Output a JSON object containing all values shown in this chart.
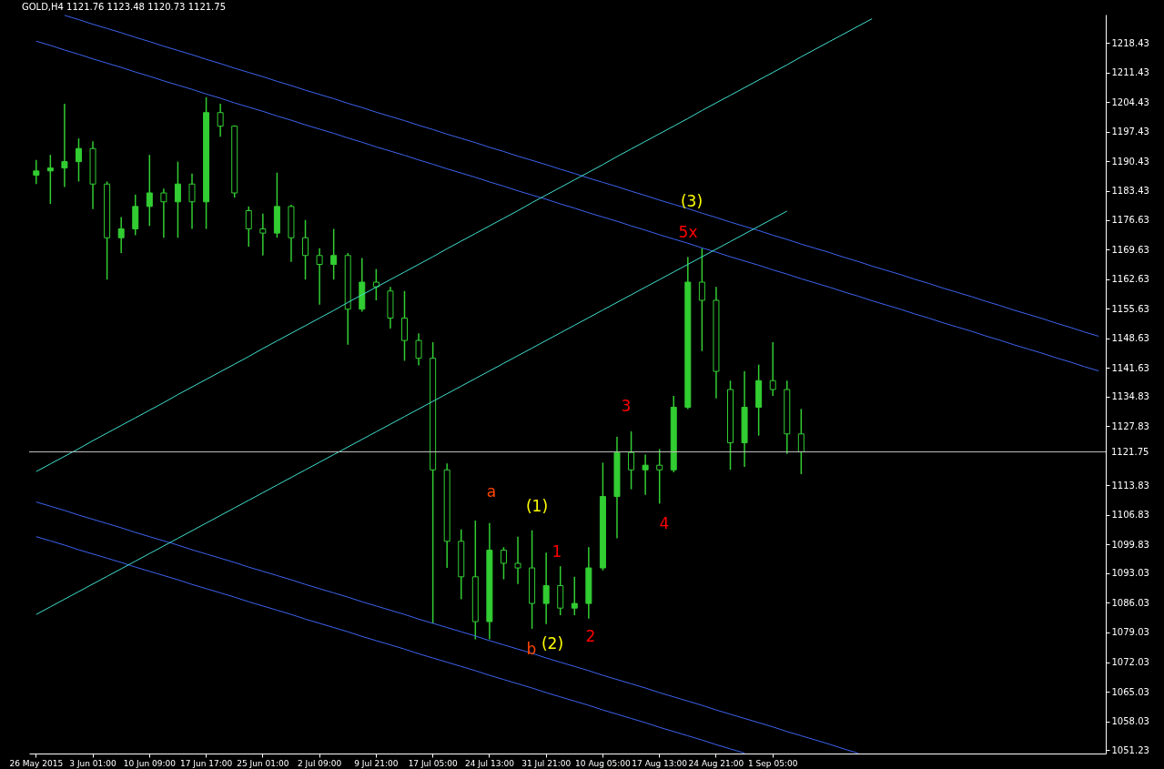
{
  "chart_data": {
    "type": "candlestick",
    "title": "GOLD,H4  1121.76 1123.48 1120.73 1121.75",
    "color": "#32cd32",
    "categories": [
      "26 May 2015",
      null,
      null,
      null,
      "3 Jun 01:00",
      null,
      null,
      null,
      "10 Jun 09:00",
      null,
      null,
      null,
      "17 Jun 17:00",
      null,
      null,
      null,
      "25 Jun 01:00",
      null,
      null,
      null,
      "2 Jul 09:00",
      null,
      null,
      null,
      "9 Jul 21:00",
      null,
      null,
      null,
      "17 Jul 05:00",
      null,
      null,
      null,
      "24 Jul 13:00",
      null,
      null,
      null,
      "31 Jul 21:00",
      null,
      null,
      null,
      "10 Aug 05:00",
      null,
      null,
      null,
      "17 Aug 13:00",
      null,
      null,
      null,
      "24 Aug 21:00",
      null,
      null,
      null,
      "1 Sep 05:00",
      null,
      null,
      null,
      null,
      null,
      null,
      null,
      null,
      null,
      null,
      null,
      null,
      null,
      null,
      null,
      null,
      null,
      null,
      null,
      null,
      null,
      null,
      null
    ],
    "ohlc": [
      [
        1187.2,
        1190.8,
        1185.1,
        1188.2
      ],
      [
        1188.2,
        1192.0,
        1180.4,
        1188.9
      ],
      [
        1188.9,
        1204.1,
        1184.4,
        1190.4
      ],
      [
        1190.4,
        1195.9,
        1185.7,
        1193.5
      ],
      [
        1193.5,
        1195.2,
        1179.2,
        1185.1
      ],
      [
        1185.1,
        1185.7,
        1162.5,
        1172.4
      ],
      [
        1172.4,
        1177.3,
        1168.8,
        1174.5
      ],
      [
        1174.5,
        1182.6,
        1173.0,
        1179.8
      ],
      [
        1179.8,
        1192.0,
        1175.2,
        1183.0
      ],
      [
        1183.0,
        1184.0,
        1172.4,
        1180.9
      ],
      [
        1180.9,
        1190.4,
        1172.4,
        1185.1
      ],
      [
        1185.1,
        1187.6,
        1174.5,
        1180.9
      ],
      [
        1180.9,
        1205.6,
        1174.5,
        1202.0
      ],
      [
        1202.0,
        1204.1,
        1196.3,
        1198.8
      ],
      [
        1198.8,
        1199.0,
        1181.9,
        1183.0
      ],
      [
        1178.8,
        1179.8,
        1170.3,
        1174.5
      ],
      [
        1174.5,
        1178.1,
        1168.2,
        1173.5
      ],
      [
        1173.5,
        1187.8,
        1172.4,
        1179.8
      ],
      [
        1179.8,
        1180.2,
        1166.7,
        1172.4
      ],
      [
        1172.4,
        1176.6,
        1162.5,
        1168.2
      ],
      [
        1168.2,
        1169.9,
        1156.6,
        1166.1
      ],
      [
        1166.1,
        1174.5,
        1162.5,
        1168.2
      ],
      [
        1168.2,
        1168.8,
        1147.1,
        1155.5
      ],
      [
        1155.5,
        1167.6,
        1154.9,
        1161.9
      ],
      [
        1161.9,
        1165.0,
        1157.6,
        1160.8
      ],
      [
        1159.8,
        1160.8,
        1150.9,
        1153.4
      ],
      [
        1153.4,
        1159.8,
        1143.3,
        1148.1
      ],
      [
        1148.1,
        1149.8,
        1142.2,
        1143.9
      ],
      [
        1143.9,
        1147.7,
        1081.2,
        1117.5
      ],
      [
        1117.5,
        1119.0,
        1094.3,
        1100.6
      ],
      [
        1100.6,
        1103.4,
        1086.9,
        1092.2
      ],
      [
        1092.2,
        1105.5,
        1077.4,
        1081.6
      ],
      [
        1081.6,
        1104.9,
        1077.4,
        1098.5
      ],
      [
        1098.5,
        1099.2,
        1091.6,
        1095.4
      ],
      [
        1095.4,
        1101.7,
        1090.5,
        1094.3
      ],
      [
        1094.3,
        1103.2,
        1079.9,
        1085.9
      ],
      [
        1085.9,
        1097.9,
        1081.0,
        1090.1
      ],
      [
        1090.1,
        1094.7,
        1083.1,
        1084.8
      ],
      [
        1084.8,
        1092.2,
        1083.1,
        1085.9
      ],
      [
        1085.9,
        1099.2,
        1082.3,
        1094.3
      ],
      [
        1094.3,
        1119.2,
        1093.7,
        1111.2
      ],
      [
        1111.2,
        1125.3,
        1101.3,
        1121.6
      ],
      [
        1121.6,
        1126.6,
        1112.9,
        1117.5
      ],
      [
        1117.5,
        1121.1,
        1111.6,
        1118.6
      ],
      [
        1118.6,
        1122.4,
        1109.5,
        1117.5
      ],
      [
        1117.5,
        1135.0,
        1116.9,
        1132.3
      ],
      [
        1132.3,
        1167.8,
        1131.9,
        1161.9
      ],
      [
        1161.9,
        1169.9,
        1145.6,
        1157.6
      ],
      [
        1157.6,
        1160.8,
        1134.4,
        1140.8
      ],
      [
        1136.5,
        1138.6,
        1117.5,
        1123.9
      ],
      [
        1123.9,
        1140.8,
        1118.2,
        1132.3
      ],
      [
        1132.3,
        1142.4,
        1125.6,
        1138.6
      ],
      [
        1138.6,
        1147.7,
        1135.0,
        1136.5
      ],
      [
        1136.5,
        1138.6,
        1121.3,
        1126.0
      ],
      [
        1126.0,
        1131.9,
        1116.5,
        1121.75
      ],
      null,
      null,
      null,
      null,
      null,
      null,
      null,
      null,
      null,
      null,
      null,
      null,
      null,
      null,
      null,
      null,
      null,
      null,
      null,
      null,
      null
    ],
    "series": [
      {
        "type": "line",
        "color": "#3d64f0",
        "values": [
          1218.9,
          1217.9,
          1216.8,
          1215.8,
          1214.7,
          1213.7,
          1212.7,
          1211.6,
          1210.6,
          1209.5,
          1208.5,
          1207.5,
          1206.4,
          1205.4,
          1204.3,
          1203.3,
          1202.3,
          1201.2,
          1200.2,
          1199.1,
          1198.1,
          1197.1,
          1196.0,
          1195.0,
          1193.9,
          1192.9,
          1191.9,
          1190.8,
          1189.8,
          1188.7,
          1187.7,
          1186.7,
          1185.6,
          1184.6,
          1183.5,
          1182.5,
          1181.5,
          1180.4,
          1179.4,
          1178.3,
          1177.3,
          1176.3,
          1175.2,
          1174.2,
          1173.1,
          1172.1,
          1171.1,
          1170.0,
          1169.0,
          1167.9,
          1166.9,
          1165.9,
          1164.8,
          1163.8,
          1162.7,
          1161.7,
          1160.7,
          1159.6,
          1158.6,
          1157.5,
          1156.5,
          1155.5,
          1154.4,
          1153.4,
          1152.3,
          1151.3,
          1150.3,
          1149.2,
          1148.2,
          1147.1,
          1146.1,
          1145.1,
          1144.0,
          1143.0,
          1141.9,
          1140.9
        ]
      },
      {
        "type": "line",
        "color": "#3d64f0",
        "values": [
          null,
          null,
          1225.0,
          1224.0,
          1222.9,
          1221.9,
          1220.9,
          1219.8,
          1218.8,
          1217.7,
          1216.7,
          1215.7,
          1214.6,
          1213.6,
          1212.5,
          1211.5,
          1210.5,
          1209.4,
          1208.4,
          1207.3,
          1206.3,
          1205.3,
          1204.2,
          1203.2,
          1202.1,
          1201.1,
          1200.1,
          1199.0,
          1198.0,
          1196.9,
          1195.9,
          1194.9,
          1193.8,
          1192.8,
          1191.7,
          1190.7,
          1189.7,
          1188.6,
          1187.6,
          1186.5,
          1185.5,
          1184.5,
          1183.4,
          1182.4,
          1181.3,
          1180.3,
          1179.3,
          1178.2,
          1177.2,
          1176.1,
          1175.1,
          1174.1,
          1173.0,
          1172.0,
          1170.9,
          1169.9,
          1168.9,
          1167.8,
          1166.8,
          1165.7,
          1164.7,
          1163.7,
          1162.6,
          1161.6,
          1160.5,
          1159.5,
          1158.5,
          1157.4,
          1156.4,
          1155.3,
          1154.3,
          1153.3,
          1152.2,
          1151.2,
          1150.1,
          1149.1
        ]
      },
      {
        "type": "line",
        "color": "#3d64f0",
        "values": [
          1109.9,
          1108.9,
          1107.9,
          1106.8,
          1105.8,
          1104.8,
          1103.8,
          1102.7,
          1101.7,
          1100.7,
          1099.7,
          1098.6,
          1097.6,
          1096.6,
          1095.6,
          1094.5,
          1093.5,
          1092.5,
          1091.5,
          1090.4,
          1089.4,
          1088.4,
          1087.4,
          1086.3,
          1085.3,
          1084.3,
          1083.3,
          1082.2,
          1081.2,
          1080.2,
          1079.2,
          1078.2,
          1077.1,
          1076.1,
          1075.1,
          1074.1,
          1073.0,
          1072.0,
          1071.0,
          1070.0,
          1068.9,
          1067.9,
          1066.9,
          1065.9,
          1064.8,
          1063.8,
          1062.8,
          1061.8,
          1060.7,
          1059.7,
          1058.7,
          1057.7,
          1056.7,
          1055.6,
          1054.6,
          1053.6,
          1052.6,
          1051.5,
          1050.5,
          null,
          null,
          null,
          null,
          null,
          null,
          null,
          null,
          null,
          null,
          null,
          null,
          null,
          null,
          null,
          null,
          null
        ]
      },
      {
        "type": "line",
        "color": "#3d64f0",
        "values": [
          1101.7,
          1100.7,
          1099.7,
          1098.6,
          1097.6,
          1096.6,
          1095.6,
          1094.5,
          1093.5,
          1092.5,
          1091.5,
          1090.4,
          1089.4,
          1088.4,
          1087.4,
          1086.3,
          1085.3,
          1084.3,
          1083.3,
          1082.2,
          1081.2,
          1080.2,
          1079.2,
          1078.1,
          1077.1,
          1076.1,
          1075.1,
          1074.0,
          1073.0,
          1072.0,
          1071.0,
          1070.0,
          1068.9,
          1067.9,
          1066.9,
          1065.9,
          1064.8,
          1063.8,
          1062.8,
          1061.8,
          1060.7,
          1059.7,
          1058.7,
          1057.7,
          1056.6,
          1055.6,
          1054.6,
          1053.6,
          1052.5,
          1051.5,
          1050.5,
          null,
          null,
          null,
          null,
          null,
          null,
          null,
          null,
          null,
          null,
          null,
          null,
          null,
          null,
          null,
          null,
          null,
          null,
          null,
          null,
          null,
          null,
          null,
          null,
          null
        ]
      },
      {
        "type": "line",
        "color": "#40e0d0",
        "values": [
          1117.1,
          1118.9,
          1120.7,
          1122.5,
          1124.4,
          1126.2,
          1128.0,
          1129.8,
          1131.6,
          1133.4,
          1135.3,
          1137.1,
          1138.9,
          1140.7,
          1142.5,
          1144.3,
          1146.2,
          1148.0,
          1149.8,
          1151.6,
          1153.4,
          1155.2,
          1157.1,
          1158.9,
          1160.7,
          1162.5,
          1164.3,
          1166.1,
          1167.9,
          1169.8,
          1171.6,
          1173.4,
          1175.2,
          1177.0,
          1178.8,
          1180.7,
          1182.5,
          1184.3,
          1186.1,
          1187.9,
          1189.7,
          1191.6,
          1193.4,
          1195.2,
          1197.0,
          1198.8,
          1200.6,
          1202.5,
          1204.3,
          1206.1,
          1207.9,
          1209.7,
          1211.5,
          1213.3,
          1215.2,
          1217.0,
          1218.8,
          1220.6,
          1222.4,
          1224.2,
          null,
          null,
          null,
          null,
          null,
          null,
          null,
          null,
          null,
          null,
          null,
          null,
          null,
          null,
          null,
          null
        ]
      },
      {
        "type": "line",
        "color": "#40e0d0",
        "values": [
          1083.3,
          1085.1,
          1086.9,
          1088.7,
          1090.5,
          1092.3,
          1094.1,
          1095.9,
          1097.7,
          1099.5,
          1101.3,
          1103.1,
          1104.9,
          1106.7,
          1108.5,
          1110.3,
          1112.1,
          1113.9,
          1115.7,
          1117.5,
          1119.3,
          1121.1,
          1122.9,
          1124.7,
          1126.5,
          1128.3,
          1130.1,
          1131.9,
          1133.7,
          1135.5,
          1137.3,
          1139.1,
          1140.9,
          1142.7,
          1144.5,
          1146.3,
          1148.1,
          1149.9,
          1151.7,
          1153.5,
          1155.3,
          1157.1,
          1158.9,
          1160.7,
          1162.5,
          1164.3,
          1166.1,
          1167.9,
          1169.7,
          1171.5,
          1173.3,
          1175.1,
          1176.9,
          1178.7,
          null,
          null,
          null,
          null,
          null,
          null,
          null,
          null,
          null,
          null,
          null,
          null,
          null,
          null,
          null,
          null,
          null,
          null,
          null,
          null,
          null,
          null
        ]
      }
    ],
    "ylim": [
      1050.4,
      1225.19
    ],
    "yticks": [
      1051.23,
      1058.03,
      1065.03,
      1072.03,
      1079.03,
      1086.03,
      1093.03,
      1099.83,
      1106.83,
      1113.83,
      1127.83,
      1134.83,
      1141.63,
      1148.63,
      1155.63,
      1162.63,
      1169.63,
      1176.63,
      1183.43,
      1190.43,
      1197.43,
      1204.43,
      1211.43,
      1218.43
    ],
    "ref_lines": [
      {
        "axis": "y",
        "value": 1121.75,
        "label": "1121.75",
        "color": "#c0c0c0"
      }
    ],
    "annotations": [
      "(3)",
      "5x",
      "a",
      "(1)",
      "1",
      "3",
      "4",
      "2",
      "b",
      "(2)"
    ],
    "grid": false
  }
}
